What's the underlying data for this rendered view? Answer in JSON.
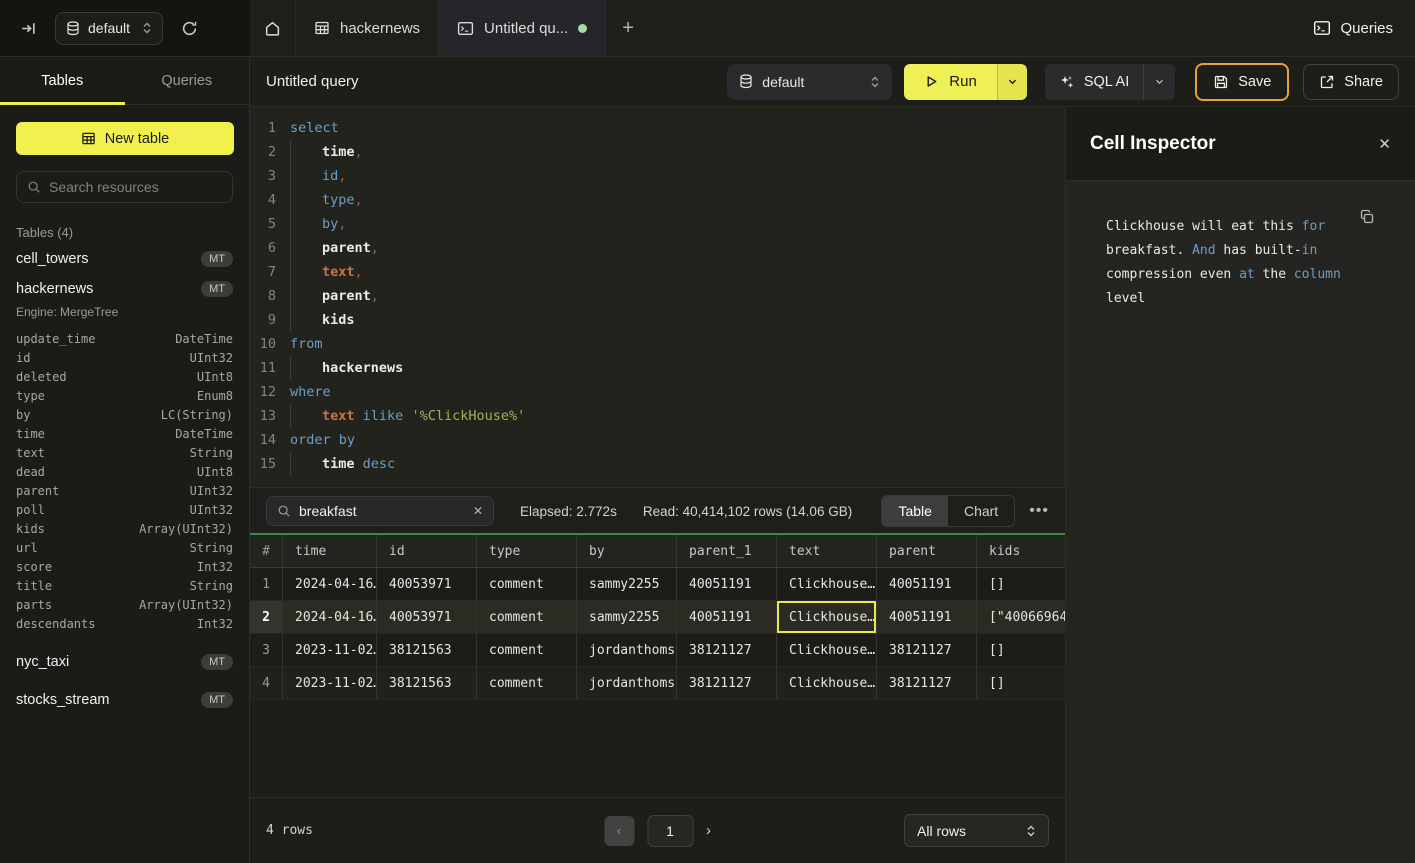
{
  "topbar": {
    "database_selector": "default",
    "tabs": [
      {
        "icon": "home",
        "label": ""
      },
      {
        "icon": "table",
        "label": "hackernews"
      },
      {
        "icon": "terminal",
        "label": "Untitled qu...",
        "dirty": true
      }
    ],
    "queries_button": "Queries"
  },
  "sidebar": {
    "tabs": {
      "tables": "Tables",
      "queries": "Queries"
    },
    "new_table_button": "New table",
    "search_placeholder": "Search resources",
    "section_label": "Tables (4)",
    "tables": [
      {
        "name": "cell_towers",
        "badge": "MT"
      },
      {
        "name": "hackernews",
        "badge": "MT",
        "engine": "Engine: MergeTree",
        "columns": [
          [
            "update_time",
            "DateTime"
          ],
          [
            "id",
            "UInt32"
          ],
          [
            "deleted",
            "UInt8"
          ],
          [
            "type",
            "Enum8"
          ],
          [
            "by",
            "LC(String)"
          ],
          [
            "time",
            "DateTime"
          ],
          [
            "text",
            "String"
          ],
          [
            "dead",
            "UInt8"
          ],
          [
            "parent",
            "UInt32"
          ],
          [
            "poll",
            "UInt32"
          ],
          [
            "kids",
            "Array(UInt32)"
          ],
          [
            "url",
            "String"
          ],
          [
            "score",
            "Int32"
          ],
          [
            "title",
            "String"
          ],
          [
            "parts",
            "Array(UInt32)"
          ],
          [
            "descendants",
            "Int32"
          ]
        ]
      },
      {
        "name": "nyc_taxi",
        "badge": "MT"
      },
      {
        "name": "stocks_stream",
        "badge": "MT"
      }
    ]
  },
  "query_header": {
    "title": "Untitled query",
    "database_selector": "default",
    "run_button": "Run",
    "sql_ai_button": "SQL AI",
    "save_button": "Save",
    "share_button": "Share"
  },
  "editor": {
    "lines": [
      {
        "n": 1,
        "ind": 0,
        "seg": [
          [
            "kw",
            "select"
          ]
        ]
      },
      {
        "n": 2,
        "ind": 1,
        "seg": [
          [
            "id",
            "time"
          ],
          [
            "p",
            ","
          ]
        ]
      },
      {
        "n": 3,
        "ind": 1,
        "seg": [
          [
            "kw",
            "id"
          ],
          [
            "p",
            ","
          ]
        ]
      },
      {
        "n": 4,
        "ind": 1,
        "seg": [
          [
            "kw",
            "type"
          ],
          [
            "p",
            ","
          ]
        ]
      },
      {
        "n": 5,
        "ind": 1,
        "seg": [
          [
            "kw",
            "by"
          ],
          [
            "p",
            ","
          ]
        ]
      },
      {
        "n": 6,
        "ind": 1,
        "seg": [
          [
            "id",
            "parent"
          ],
          [
            "p",
            ","
          ]
        ]
      },
      {
        "n": 7,
        "ind": 1,
        "seg": [
          [
            "or",
            "text"
          ],
          [
            "p",
            ","
          ]
        ]
      },
      {
        "n": 8,
        "ind": 1,
        "seg": [
          [
            "id",
            "parent"
          ],
          [
            "p",
            ","
          ]
        ]
      },
      {
        "n": 9,
        "ind": 1,
        "seg": [
          [
            "id",
            "kids"
          ]
        ]
      },
      {
        "n": 10,
        "ind": 0,
        "seg": [
          [
            "kw",
            "from"
          ]
        ]
      },
      {
        "n": 11,
        "ind": 1,
        "seg": [
          [
            "id",
            "hackernews"
          ]
        ]
      },
      {
        "n": 12,
        "ind": 0,
        "seg": [
          [
            "kw",
            "where"
          ]
        ]
      },
      {
        "n": 13,
        "ind": 1,
        "seg": [
          [
            "or",
            "text"
          ],
          [
            "pl",
            " "
          ],
          [
            "kw",
            "ilike"
          ],
          [
            "pl",
            " "
          ],
          [
            "str",
            "'%ClickHouse%'"
          ]
        ]
      },
      {
        "n": 14,
        "ind": 0,
        "seg": [
          [
            "kw",
            "order by"
          ]
        ]
      },
      {
        "n": 15,
        "ind": 1,
        "seg": [
          [
            "id",
            "time"
          ],
          [
            "pl",
            " "
          ],
          [
            "kw",
            "desc"
          ]
        ]
      }
    ]
  },
  "results": {
    "search_value": "breakfast",
    "elapsed": "Elapsed: 2.772s",
    "read": "Read: 40,414,102 rows (14.06 GB)",
    "view_toggle": {
      "table": "Table",
      "chart": "Chart"
    },
    "active_view": "Table"
  },
  "table": {
    "headers": [
      "#",
      "time",
      "id",
      "type",
      "by",
      "parent_1",
      "text",
      "parent",
      "kids"
    ],
    "rows": [
      {
        "num": "1",
        "cells": [
          "2024-04-16…",
          "40053971",
          "comment",
          "sammy2255",
          "40051191",
          "Clickhouse…",
          "40051191",
          "[]"
        ],
        "selected": false
      },
      {
        "num": "2",
        "cells": [
          "2024-04-16…",
          "40053971",
          "comment",
          "sammy2255",
          "40051191",
          "Clickhouse…",
          "40051191",
          "[\"40066964…"
        ],
        "selected": true,
        "selected_cell": 5
      },
      {
        "num": "3",
        "cells": [
          "2023-11-02…",
          "38121563",
          "comment",
          "jordanthoms",
          "38121127",
          "Clickhouse…",
          "38121127",
          "[]"
        ],
        "selected": false
      },
      {
        "num": "4",
        "cells": [
          "2023-11-02…",
          "38121563",
          "comment",
          "jordanthoms",
          "38121127",
          "Clickhouse…",
          "38121127",
          "[]"
        ],
        "selected": false
      }
    ]
  },
  "inspector": {
    "title": "Cell Inspector",
    "content": [
      [
        "w",
        "Clickhouse will eat this "
      ],
      [
        "b",
        "for"
      ],
      [
        "w",
        " breakfast. "
      ],
      [
        "b",
        "And"
      ],
      [
        "w",
        " has built-"
      ],
      [
        "b",
        "in"
      ],
      [
        "w",
        " compression even "
      ],
      [
        "b",
        "at"
      ],
      [
        "w",
        " the "
      ],
      [
        "b",
        "column"
      ],
      [
        "w",
        " level"
      ]
    ]
  },
  "footer": {
    "row_count": "4 rows",
    "page": "1",
    "page_size": "All rows"
  },
  "colors": {
    "accent_yellow": "#f0f14f",
    "save_border": "#e9a13b",
    "table_header_green": "#3a8c3f",
    "keyword_blue": "#6b9fc8",
    "identifier_orange": "#cf6f4a",
    "string_green": "#a9ae5c",
    "unsaved_dot_green": "#9fe0a0",
    "selected_cell_border": "#e9ea48"
  }
}
